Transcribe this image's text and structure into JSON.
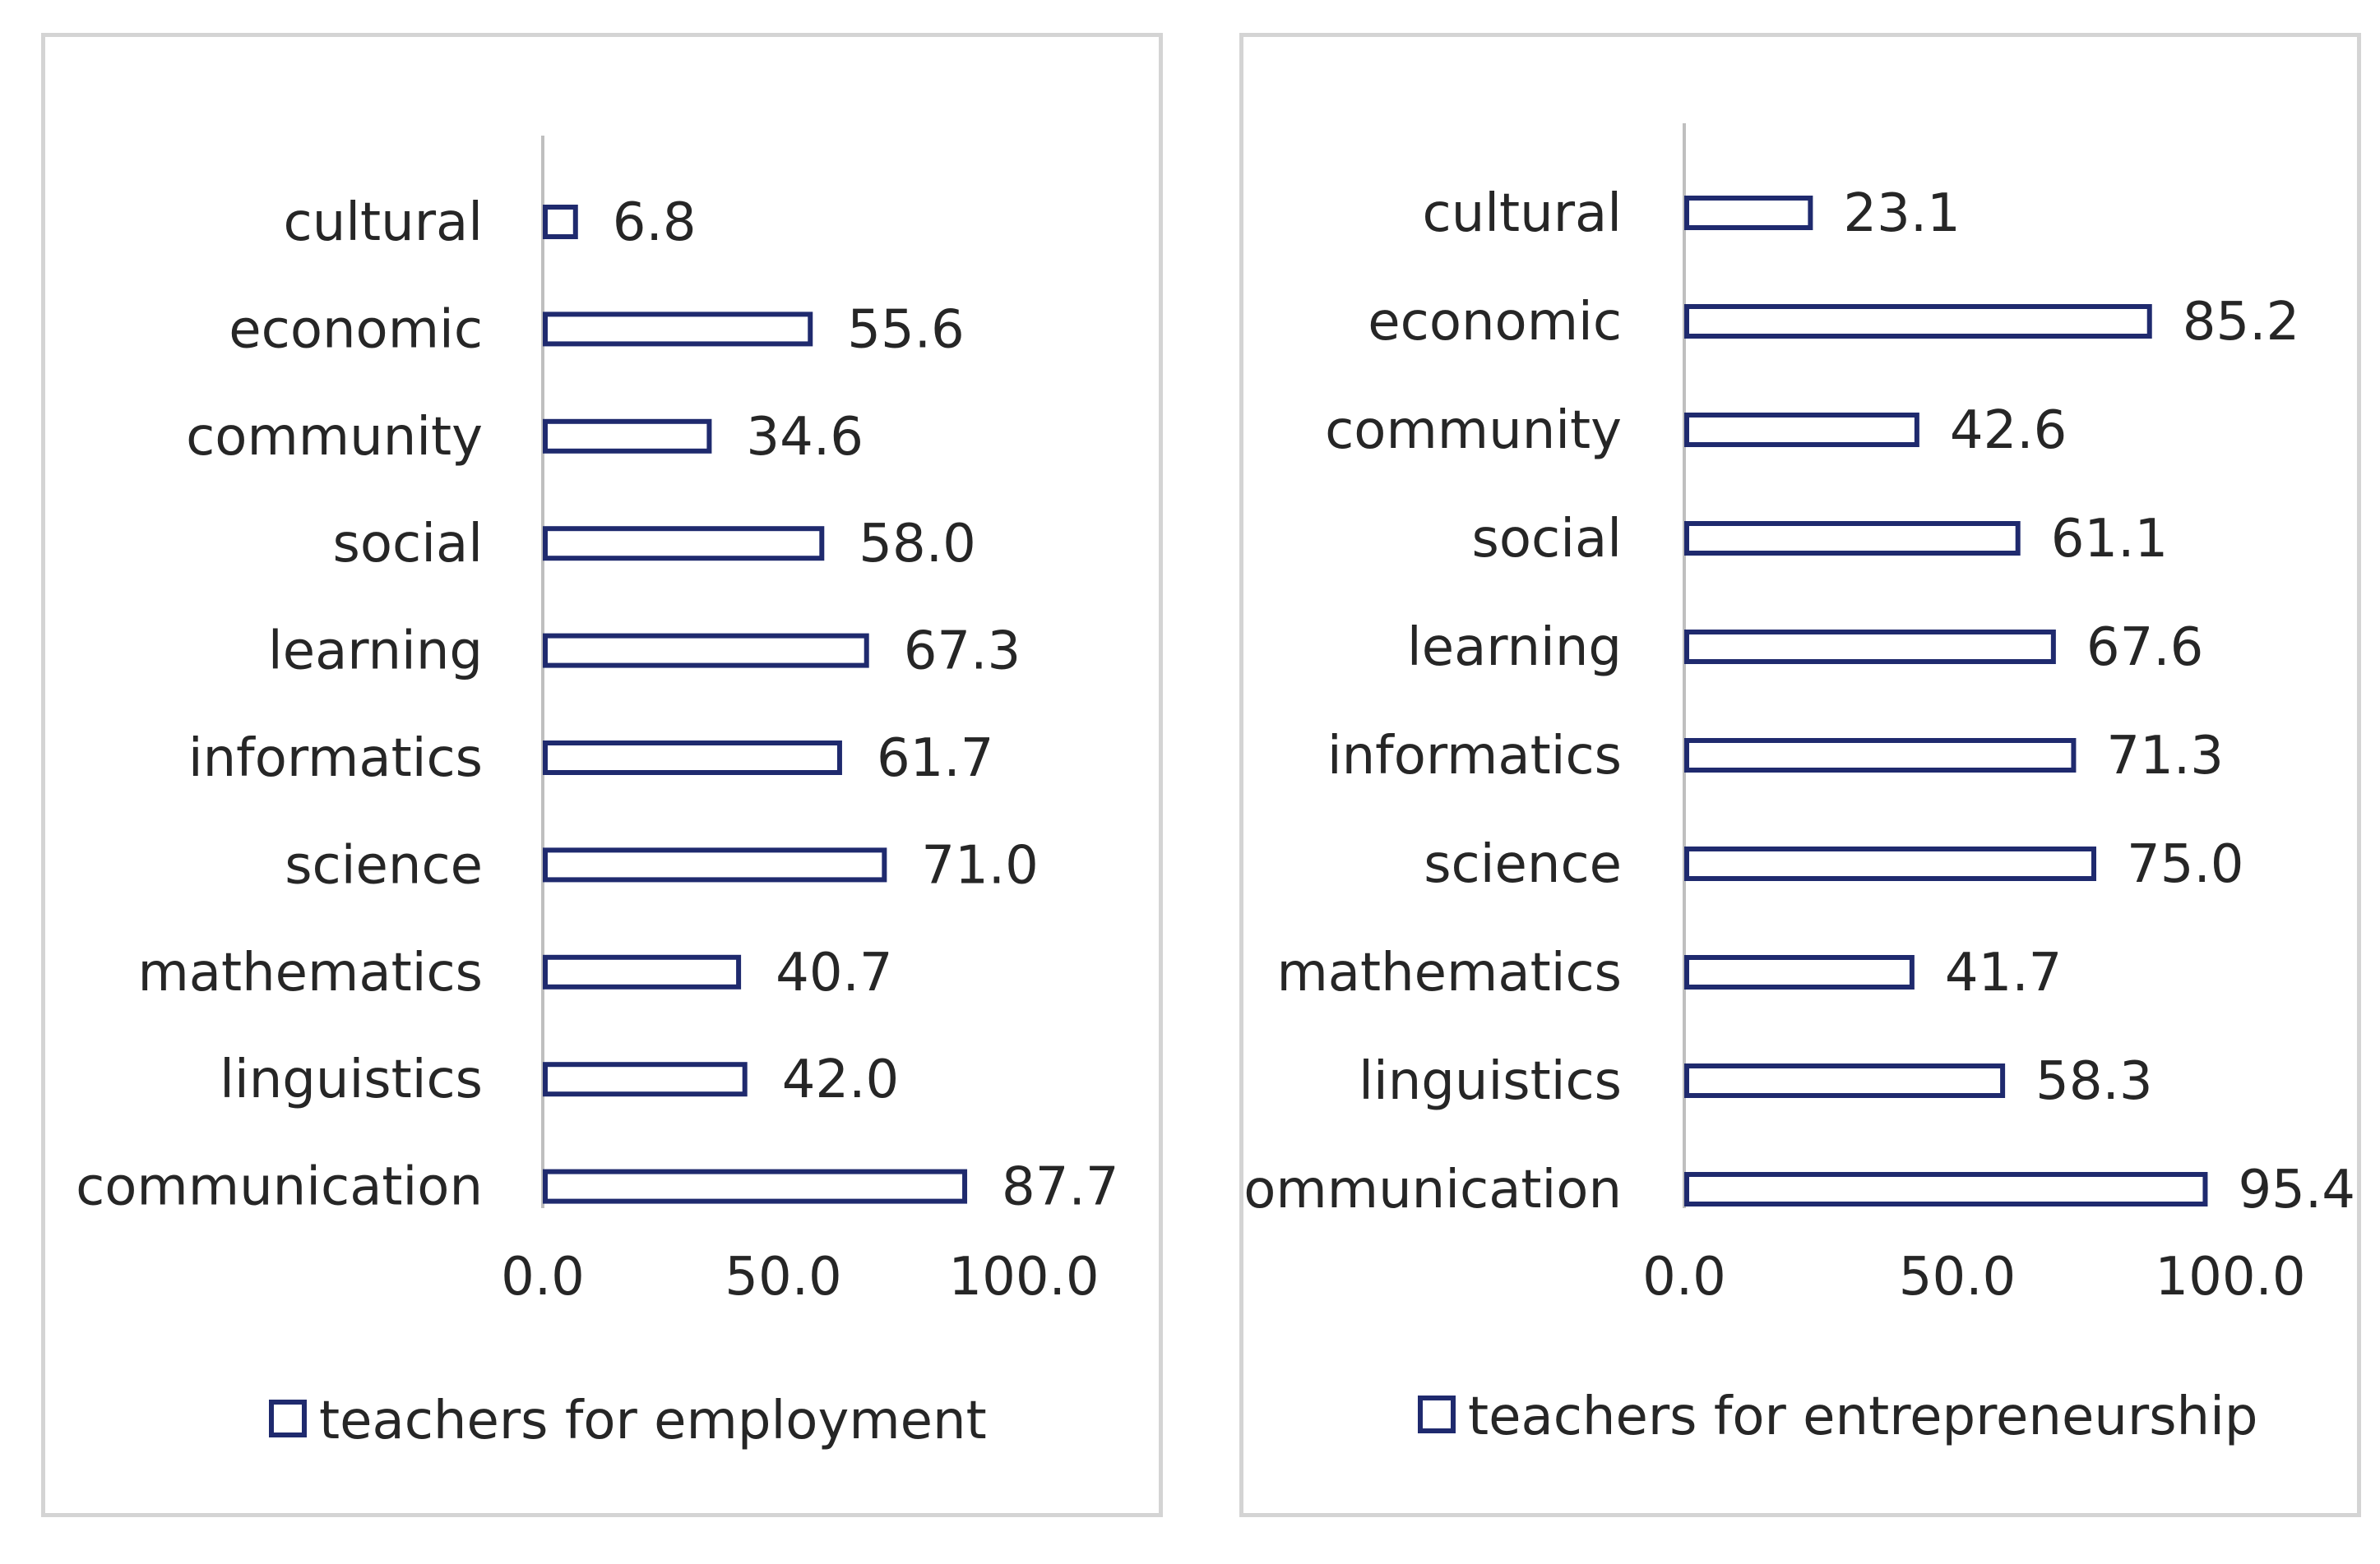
{
  "colors": {
    "bar_stroke": "#1f2a6e",
    "axis": "#bfbfbf",
    "text": "#262626",
    "border": "#d4d4d4"
  },
  "chart_data": [
    {
      "type": "bar",
      "orientation": "horizontal",
      "categories": [
        "cultural",
        "economic",
        "community",
        "social",
        "learning",
        "informatics",
        "science",
        "mathematics",
        "linguistics",
        "communication"
      ],
      "series": [
        {
          "name": "teachers for employment",
          "values": [
            6.8,
            55.6,
            34.6,
            58.0,
            67.3,
            61.7,
            71.0,
            40.7,
            42.0,
            87.7
          ],
          "labels": [
            "6.8",
            "55.6",
            "34.6",
            "58.0",
            "67.3",
            "61.7",
            "71.0",
            "40.7",
            "42.0",
            "87.7"
          ]
        }
      ],
      "xlim": [
        0,
        100
      ],
      "xticks": [
        "0.0",
        "50.0",
        "100.0"
      ],
      "legend": "bottom",
      "legend_label": "teachers for employment",
      "title": ""
    },
    {
      "type": "bar",
      "orientation": "horizontal",
      "categories": [
        "cultural",
        "economic",
        "community",
        "social",
        "learning",
        "informatics",
        "science",
        "mathematics",
        "linguistics",
        "communication"
      ],
      "series": [
        {
          "name": "teachers for entrepreneurship",
          "values": [
            23.1,
            85.2,
            42.6,
            61.1,
            67.6,
            71.3,
            75.0,
            41.7,
            58.3,
            95.4
          ],
          "labels": [
            "23.1",
            "85.2",
            "42.6",
            "61.1",
            "67.6",
            "71.3",
            "75.0",
            "41.7",
            "58.3",
            "95.4"
          ]
        }
      ],
      "xlim": [
        0,
        100
      ],
      "xticks": [
        "0.0",
        "50.0",
        "100.0"
      ],
      "legend": "bottom",
      "legend_label": "teachers for entrepreneurship",
      "title": ""
    }
  ]
}
